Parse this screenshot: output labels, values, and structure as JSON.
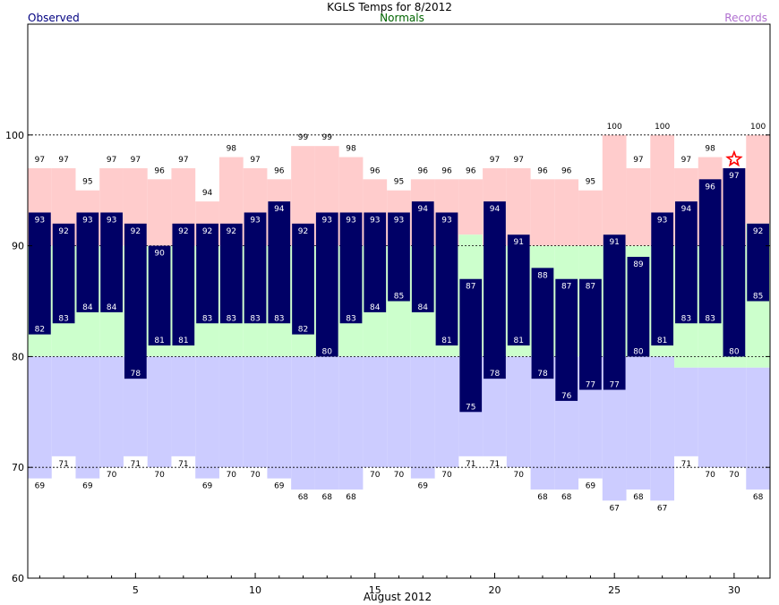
{
  "chart_data": {
    "type": "bar",
    "title": "KGLS Temps for 8/2012",
    "xlabel": "August 2012",
    "legend": {
      "observed": "Observed",
      "normals": "Normals",
      "records": "Records"
    },
    "ylim": [
      60,
      110
    ],
    "yticks": [
      60,
      70,
      80,
      90,
      100
    ],
    "xlim": [
      0.5,
      31.5
    ],
    "xticks": [
      5,
      10,
      15,
      20,
      25,
      30
    ],
    "grid": "dashed at 70, 80, 90, 100",
    "colors": {
      "observed": "#000066",
      "normal_band": "#ccffcc",
      "record_high_band": "#ffcccc",
      "record_low_band": "#ccccff",
      "observed_text": "#ffffff",
      "record_star": "#ff0000",
      "observed_legend": "#000080",
      "normals_legend": "#006400",
      "records_legend": "#b070d0"
    },
    "days": [
      1,
      2,
      3,
      4,
      5,
      6,
      7,
      8,
      9,
      10,
      11,
      12,
      13,
      14,
      15,
      16,
      17,
      18,
      19,
      20,
      21,
      22,
      23,
      24,
      25,
      26,
      27,
      28,
      29,
      30,
      31
    ],
    "observed_high": [
      93,
      92,
      93,
      93,
      92,
      90,
      92,
      92,
      92,
      93,
      94,
      92,
      93,
      93,
      93,
      93,
      94,
      93,
      87,
      94,
      91,
      88,
      87,
      87,
      91,
      89,
      93,
      94,
      96,
      97,
      92
    ],
    "observed_low": [
      82,
      83,
      84,
      84,
      78,
      81,
      81,
      83,
      83,
      83,
      83,
      82,
      80,
      83,
      84,
      85,
      84,
      81,
      75,
      78,
      81,
      78,
      76,
      77,
      77,
      80,
      81,
      83,
      83,
      80,
      85
    ],
    "normal_high": [
      90,
      90,
      90,
      90,
      90,
      90,
      90,
      90,
      90,
      90,
      90,
      90,
      90,
      90,
      90,
      90,
      90,
      90,
      91,
      90,
      90,
      90,
      90,
      90,
      90,
      90,
      90,
      90,
      90,
      90,
      92
    ],
    "normal_low": [
      80,
      80,
      80,
      80,
      80,
      80,
      80,
      80,
      80,
      80,
      80,
      80,
      80,
      80,
      80,
      80,
      80,
      80,
      80,
      80,
      80,
      80,
      80,
      80,
      80,
      80,
      80,
      79,
      79,
      79,
      79
    ],
    "record_high": [
      97,
      97,
      95,
      97,
      97,
      96,
      97,
      94,
      98,
      97,
      96,
      99,
      99,
      98,
      96,
      95,
      96,
      96,
      96,
      97,
      97,
      96,
      96,
      95,
      100,
      97,
      100,
      97,
      98,
      97,
      100
    ],
    "record_low": [
      69,
      71,
      69,
      70,
      71,
      70,
      71,
      69,
      70,
      70,
      69,
      68,
      68,
      68,
      70,
      70,
      69,
      70,
      71,
      71,
      70,
      68,
      68,
      69,
      67,
      68,
      67,
      71,
      70,
      70,
      68
    ],
    "new_record_day": 30
  }
}
